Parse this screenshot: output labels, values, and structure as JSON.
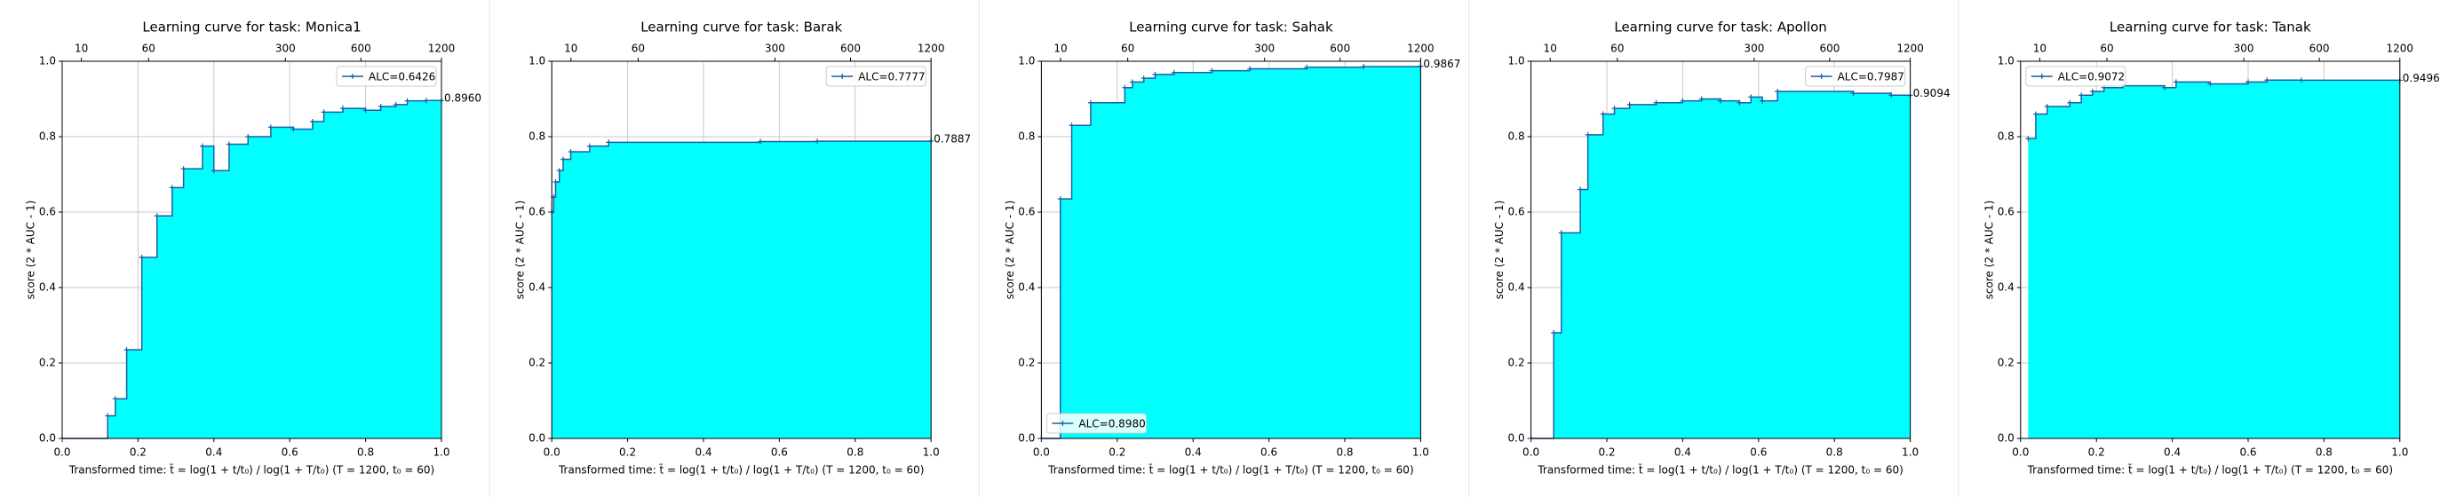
{
  "chart_data": [
    {
      "type": "step",
      "title": "Learning curve for task: Monica1",
      "xlabel": "Transformed time: t̃ = log(1 + t/t₀) / log(1 + T/t₀)   (T = 1200,  t₀ = 60)",
      "ylabel": "score (2 * AUC - 1)",
      "x": [
        0,
        0.12,
        0.14,
        0.17,
        0.21,
        0.25,
        0.29,
        0.32,
        0.37,
        0.4,
        0.44,
        0.49,
        0.55,
        0.61,
        0.66,
        0.69,
        0.74,
        0.8,
        0.84,
        0.88,
        0.91,
        0.96,
        1.0
      ],
      "series": [
        {
          "name": "ALC=0.6426",
          "color": "#1f5fa0",
          "values": [
            0,
            0.06,
            0.105,
            0.235,
            0.48,
            0.59,
            0.665,
            0.715,
            0.775,
            0.71,
            0.78,
            0.8,
            0.825,
            0.82,
            0.84,
            0.865,
            0.875,
            0.87,
            0.88,
            0.885,
            0.895,
            0.896,
            0.896
          ]
        }
      ],
      "end_value_label": "0.8960",
      "fill_color": "#00ffff",
      "legend": "upper right",
      "grid": true,
      "xlim": [
        0,
        1
      ],
      "ylim": [
        0,
        1
      ],
      "xticks": [
        {
          "value": 0,
          "label": "0.0"
        },
        {
          "value": 0.2,
          "label": "0.2"
        },
        {
          "value": 0.4,
          "label": "0.4"
        },
        {
          "value": 0.6,
          "label": "0.6"
        },
        {
          "value": 0.8,
          "label": "0.8"
        },
        {
          "value": 1,
          "label": "1.0"
        }
      ],
      "yticks": [
        {
          "value": 0,
          "label": "0.0"
        },
        {
          "value": 0.2,
          "label": "0.2"
        },
        {
          "value": 0.4,
          "label": "0.4"
        },
        {
          "value": 0.6,
          "label": "0.6"
        },
        {
          "value": 0.8,
          "label": "0.8"
        },
        {
          "value": 1,
          "label": "1.0"
        }
      ],
      "x2ticks": [
        {
          "value": 0.0506,
          "label": "10"
        },
        {
          "value": 0.2277,
          "label": "60"
        },
        {
          "value": 0.5885,
          "label": "300"
        },
        {
          "value": 0.7876,
          "label": "600"
        },
        {
          "value": 1,
          "label": "1200"
        }
      ]
    },
    {
      "type": "step",
      "title": "Learning curve for task: Barak",
      "xlabel": "Transformed time: t̃ = log(1 + t/t₀) / log(1 + T/t₀)   (T = 1200,  t₀ = 60)",
      "ylabel": "score (2 * AUC - 1)",
      "x": [
        0,
        0.005,
        0.01,
        0.02,
        0.03,
        0.05,
        0.1,
        0.15,
        0.55,
        0.7,
        1.0
      ],
      "series": [
        {
          "name": "ALC=0.7777",
          "color": "#1f5fa0",
          "values": [
            0.6,
            0.64,
            0.68,
            0.71,
            0.74,
            0.76,
            0.775,
            0.785,
            0.787,
            0.788,
            0.7887
          ]
        }
      ],
      "end_value_label": "0.7887",
      "fill_color": "#00ffff",
      "legend": "upper right",
      "grid": true,
      "xlim": [
        0,
        1
      ],
      "ylim": [
        0,
        1
      ],
      "xticks": [
        {
          "value": 0,
          "label": "0.0"
        },
        {
          "value": 0.2,
          "label": "0.2"
        },
        {
          "value": 0.4,
          "label": "0.4"
        },
        {
          "value": 0.6,
          "label": "0.6"
        },
        {
          "value": 0.8,
          "label": "0.8"
        },
        {
          "value": 1,
          "label": "1.0"
        }
      ],
      "yticks": [
        {
          "value": 0,
          "label": "0.0"
        },
        {
          "value": 0.2,
          "label": "0.2"
        },
        {
          "value": 0.4,
          "label": "0.4"
        },
        {
          "value": 0.6,
          "label": "0.6"
        },
        {
          "value": 0.8,
          "label": "0.8"
        },
        {
          "value": 1,
          "label": "1.0"
        }
      ],
      "x2ticks": [
        {
          "value": 0.0506,
          "label": "10"
        },
        {
          "value": 0.2277,
          "label": "60"
        },
        {
          "value": 0.5885,
          "label": "300"
        },
        {
          "value": 0.7876,
          "label": "600"
        },
        {
          "value": 1,
          "label": "1200"
        }
      ]
    },
    {
      "type": "step",
      "title": "Learning curve for task: Sahak",
      "xlabel": "Transformed time: t̃ = log(1 + t/t₀) / log(1 + T/t₀)   (T = 1200,  t₀ = 60)",
      "ylabel": "score (2 * AUC - 1)",
      "x": [
        0,
        0.05,
        0.08,
        0.13,
        0.22,
        0.24,
        0.27,
        0.3,
        0.35,
        0.45,
        0.55,
        0.7,
        0.85,
        1.0
      ],
      "series": [
        {
          "name": "ALC=0.8980",
          "color": "#1f5fa0",
          "values": [
            0,
            0.635,
            0.83,
            0.89,
            0.93,
            0.945,
            0.955,
            0.965,
            0.97,
            0.975,
            0.98,
            0.984,
            0.986,
            0.9867
          ]
        }
      ],
      "end_value_label": "0.9867",
      "fill_color": "#00ffff",
      "legend": "lower left",
      "grid": true,
      "xlim": [
        0,
        1
      ],
      "ylim": [
        0,
        1
      ],
      "xticks": [
        {
          "value": 0,
          "label": "0.0"
        },
        {
          "value": 0.2,
          "label": "0.2"
        },
        {
          "value": 0.4,
          "label": "0.4"
        },
        {
          "value": 0.6,
          "label": "0.6"
        },
        {
          "value": 0.8,
          "label": "0.8"
        },
        {
          "value": 1,
          "label": "1.0"
        }
      ],
      "yticks": [
        {
          "value": 0,
          "label": "0.0"
        },
        {
          "value": 0.2,
          "label": "0.2"
        },
        {
          "value": 0.4,
          "label": "0.4"
        },
        {
          "value": 0.6,
          "label": "0.6"
        },
        {
          "value": 0.8,
          "label": "0.8"
        },
        {
          "value": 1,
          "label": "1.0"
        }
      ],
      "x2ticks": [
        {
          "value": 0.0506,
          "label": "10"
        },
        {
          "value": 0.2277,
          "label": "60"
        },
        {
          "value": 0.5885,
          "label": "300"
        },
        {
          "value": 0.7876,
          "label": "600"
        },
        {
          "value": 1,
          "label": "1200"
        }
      ]
    },
    {
      "type": "step",
      "title": "Learning curve for task: Apollon",
      "xlabel": "Transformed time: t̃ = log(1 + t/t₀) / log(1 + T/t₀)   (T = 1200,  t₀ = 60)",
      "ylabel": "score (2 * AUC - 1)",
      "x": [
        0,
        0.06,
        0.08,
        0.13,
        0.15,
        0.19,
        0.22,
        0.26,
        0.33,
        0.4,
        0.45,
        0.5,
        0.55,
        0.58,
        0.61,
        0.65,
        0.85,
        0.95,
        1.0
      ],
      "series": [
        {
          "name": "ALC=0.7987",
          "color": "#1f5fa0",
          "values": [
            0,
            0.28,
            0.545,
            0.66,
            0.805,
            0.86,
            0.875,
            0.885,
            0.89,
            0.895,
            0.9,
            0.895,
            0.89,
            0.905,
            0.895,
            0.92,
            0.915,
            0.91,
            0.9094
          ]
        }
      ],
      "end_value_label": "0.9094",
      "fill_color": "#00ffff",
      "legend": "upper right",
      "grid": true,
      "xlim": [
        0,
        1
      ],
      "ylim": [
        0,
        1
      ],
      "xticks": [
        {
          "value": 0,
          "label": "0.0"
        },
        {
          "value": 0.2,
          "label": "0.2"
        },
        {
          "value": 0.4,
          "label": "0.4"
        },
        {
          "value": 0.6,
          "label": "0.6"
        },
        {
          "value": 0.8,
          "label": "0.8"
        },
        {
          "value": 1,
          "label": "1.0"
        }
      ],
      "yticks": [
        {
          "value": 0,
          "label": "0.0"
        },
        {
          "value": 0.2,
          "label": "0.2"
        },
        {
          "value": 0.4,
          "label": "0.4"
        },
        {
          "value": 0.6,
          "label": "0.6"
        },
        {
          "value": 0.8,
          "label": "0.8"
        },
        {
          "value": 1,
          "label": "1.0"
        }
      ],
      "x2ticks": [
        {
          "value": 0.0506,
          "label": "10"
        },
        {
          "value": 0.2277,
          "label": "60"
        },
        {
          "value": 0.5885,
          "label": "300"
        },
        {
          "value": 0.7876,
          "label": "600"
        },
        {
          "value": 1,
          "label": "1200"
        }
      ]
    },
    {
      "type": "step",
      "title": "Learning curve for task: Tanak",
      "xlabel": "Transformed time: t̃ = log(1 + t/t₀) / log(1 + T/t₀)   (T = 1200,  t₀ = 60)",
      "ylabel": "score (2 * AUC - 1)",
      "x": [
        0.02,
        0.04,
        0.07,
        0.13,
        0.16,
        0.19,
        0.22,
        0.27,
        0.38,
        0.41,
        0.5,
        0.6,
        0.65,
        0.74,
        1.0
      ],
      "series": [
        {
          "name": "ALC=0.9072",
          "color": "#1f5fa0",
          "values": [
            0.795,
            0.86,
            0.88,
            0.89,
            0.91,
            0.92,
            0.93,
            0.935,
            0.93,
            0.945,
            0.94,
            0.945,
            0.95,
            0.9496,
            0.9496
          ]
        }
      ],
      "end_value_label": "0.9496",
      "fill_color": "#00ffff",
      "legend": "upper left",
      "grid": true,
      "xlim": [
        0,
        1
      ],
      "ylim": [
        0,
        1
      ],
      "xticks": [
        {
          "value": 0,
          "label": "0.0"
        },
        {
          "value": 0.2,
          "label": "0.2"
        },
        {
          "value": 0.4,
          "label": "0.4"
        },
        {
          "value": 0.6,
          "label": "0.6"
        },
        {
          "value": 0.8,
          "label": "0.8"
        },
        {
          "value": 1,
          "label": "1.0"
        }
      ],
      "yticks": [
        {
          "value": 0,
          "label": "0.0"
        },
        {
          "value": 0.2,
          "label": "0.2"
        },
        {
          "value": 0.4,
          "label": "0.4"
        },
        {
          "value": 0.6,
          "label": "0.6"
        },
        {
          "value": 0.8,
          "label": "0.8"
        },
        {
          "value": 1,
          "label": "1.0"
        }
      ],
      "x2ticks": [
        {
          "value": 0.0506,
          "label": "10"
        },
        {
          "value": 0.2277,
          "label": "60"
        },
        {
          "value": 0.5885,
          "label": "300"
        },
        {
          "value": 0.7876,
          "label": "600"
        },
        {
          "value": 1,
          "label": "1200"
        }
      ]
    }
  ]
}
